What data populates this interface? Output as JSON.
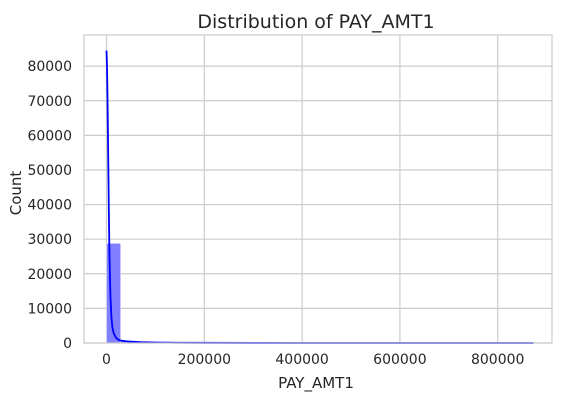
{
  "chart_data": {
    "type": "bar",
    "title": "Distribution of PAY_AMT1",
    "xlabel": "PAY_AMT1",
    "ylabel": "Count",
    "xlim": [
      -46000,
      911000
    ],
    "ylim": [
      0,
      89000
    ],
    "xticks": [
      0,
      200000,
      400000,
      600000,
      800000
    ],
    "xtick_labels": [
      "0",
      "200000",
      "400000",
      "600000",
      "800000"
    ],
    "yticks": [
      0,
      10000,
      20000,
      30000,
      40000,
      50000,
      60000,
      70000,
      80000
    ],
    "ytick_labels": [
      "0",
      "10000",
      "20000",
      "30000",
      "40000",
      "50000",
      "60000",
      "70000",
      "80000"
    ],
    "grid": true,
    "colors": {
      "bar_fill": "#7f7fff",
      "bar_edge": "#ffffff",
      "kde_line": "#0000ff",
      "grid": "#cccccc",
      "axes_edge": "#cccccc",
      "text": "#262626",
      "background": "#ffffff"
    },
    "bin_width": 29000,
    "bins": [
      {
        "x0": 0,
        "x1": 29000,
        "count": 28800
      },
      {
        "x0": 29000,
        "x1": 58000,
        "count": 700
      },
      {
        "x0": 58000,
        "x1": 87000,
        "count": 250
      },
      {
        "x0": 87000,
        "x1": 116000,
        "count": 110
      },
      {
        "x0": 116000,
        "x1": 145000,
        "count": 60
      },
      {
        "x0": 145000,
        "x1": 174000,
        "count": 35
      },
      {
        "x0": 174000,
        "x1": 203000,
        "count": 20
      },
      {
        "x0": 203000,
        "x1": 232000,
        "count": 10
      },
      {
        "x0": 232000,
        "x1": 261000,
        "count": 8
      },
      {
        "x0": 261000,
        "x1": 290000,
        "count": 5
      },
      {
        "x0": 290000,
        "x1": 319000,
        "count": 4
      },
      {
        "x0": 319000,
        "x1": 348000,
        "count": 2
      },
      {
        "x0": 348000,
        "x1": 377000,
        "count": 2
      },
      {
        "x0": 377000,
        "x1": 406000,
        "count": 1
      },
      {
        "x0": 406000,
        "x1": 435000,
        "count": 1
      },
      {
        "x0": 435000,
        "x1": 464000,
        "count": 0
      },
      {
        "x0": 464000,
        "x1": 493000,
        "count": 1
      },
      {
        "x0": 493000,
        "x1": 522000,
        "count": 0
      },
      {
        "x0": 522000,
        "x1": 551000,
        "count": 0
      },
      {
        "x0": 551000,
        "x1": 580000,
        "count": 0
      },
      {
        "x0": 580000,
        "x1": 609000,
        "count": 0
      },
      {
        "x0": 609000,
        "x1": 638000,
        "count": 0
      },
      {
        "x0": 638000,
        "x1": 667000,
        "count": 0
      },
      {
        "x0": 667000,
        "x1": 696000,
        "count": 0
      },
      {
        "x0": 696000,
        "x1": 725000,
        "count": 0
      },
      {
        "x0": 725000,
        "x1": 754000,
        "count": 0
      },
      {
        "x0": 754000,
        "x1": 783000,
        "count": 0
      },
      {
        "x0": 783000,
        "x1": 812000,
        "count": 0
      },
      {
        "x0": 812000,
        "x1": 841000,
        "count": 0
      },
      {
        "x0": 841000,
        "x1": 870000,
        "count": 1
      }
    ],
    "kde": {
      "x": [
        0,
        1000,
        2000,
        3000,
        4000,
        5000,
        6000,
        8000,
        10000,
        12000,
        15000,
        20000,
        25000,
        30000,
        40000,
        50000,
        70000,
        100000,
        150000,
        200000,
        300000,
        400000,
        500000,
        600000,
        700000,
        800000,
        873000
      ],
      "y": [
        84500,
        80000,
        71500,
        60000,
        48000,
        36000,
        26000,
        14000,
        7500,
        4600,
        2700,
        1400,
        900,
        700,
        500,
        380,
        250,
        150,
        80,
        50,
        20,
        10,
        6,
        4,
        3,
        2,
        1
      ]
    }
  }
}
